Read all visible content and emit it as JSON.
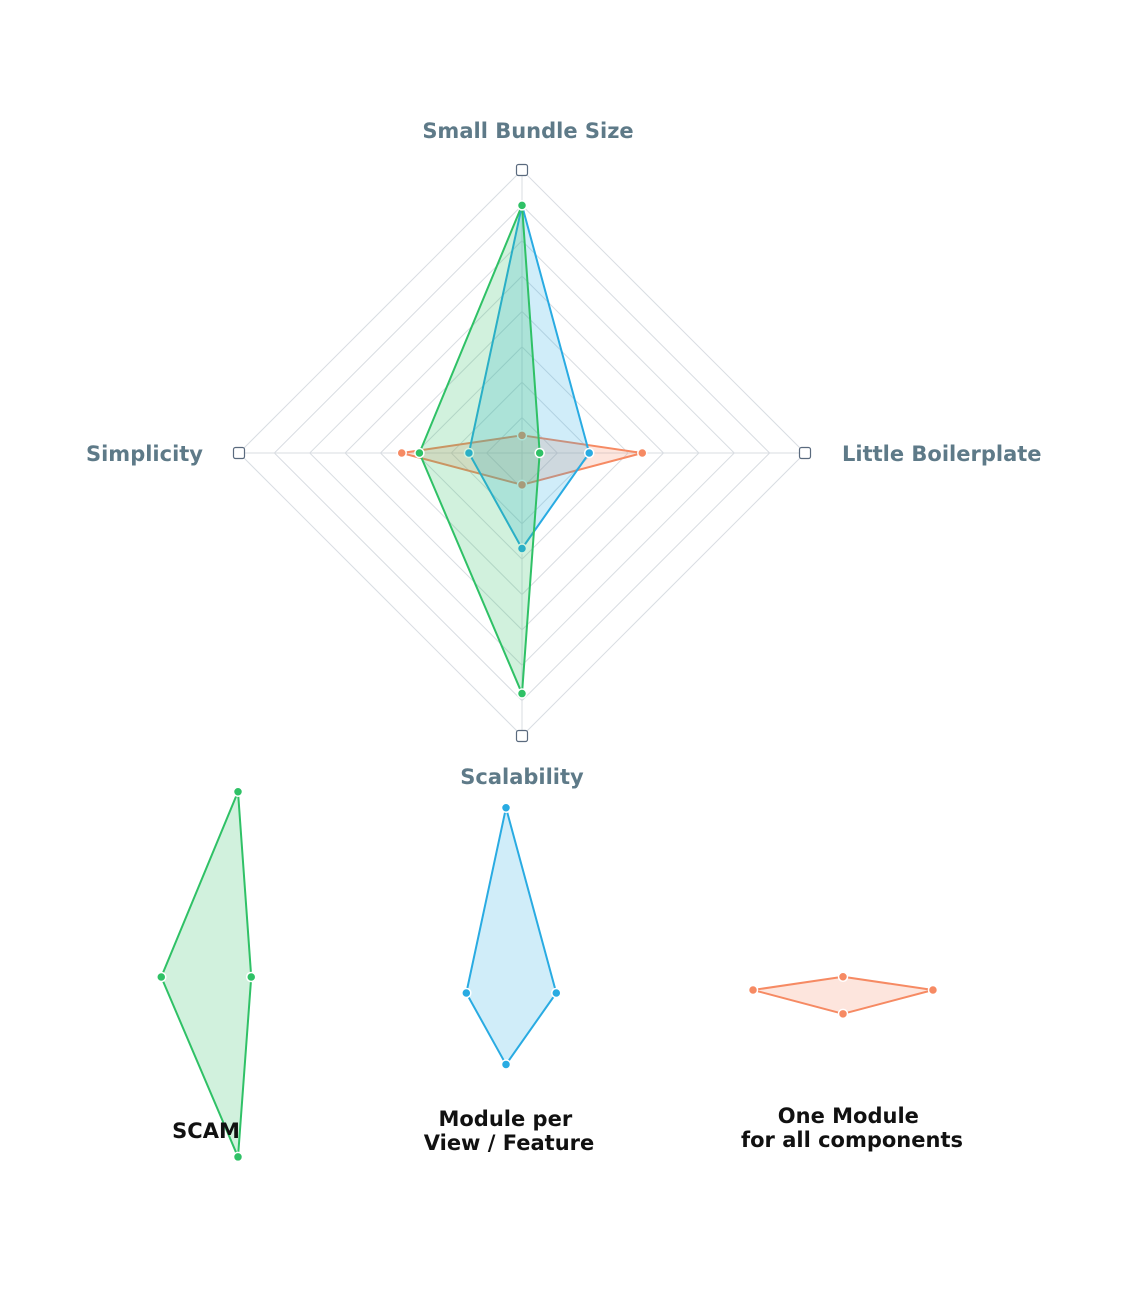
{
  "chart_data": {
    "type": "radar",
    "axes": [
      "Small Bundle Size",
      "Little Boilerplate",
      "Scalability",
      "Simplicity"
    ],
    "range": [
      0,
      8
    ],
    "grid_levels": 8,
    "series": [
      {
        "name": "SCAM",
        "label_lines": [
          "SCAM"
        ],
        "values": [
          7.0,
          0.5,
          6.8,
          2.9
        ],
        "color": "#2fc166",
        "fill": "#2fc166"
      },
      {
        "name": "Module per View / Feature",
        "label_lines": [
          "Module per",
          "View / Feature"
        ],
        "values": [
          7.0,
          1.9,
          2.7,
          1.5
        ],
        "color": "#29abe2",
        "fill": "#29abe2"
      },
      {
        "name": "One Module for all components",
        "label_lines": [
          "One Module",
          "for all components"
        ],
        "values": [
          0.5,
          3.4,
          0.9,
          3.4
        ],
        "color": "#f68a63",
        "fill": "#f68a63"
      }
    ],
    "draw_order": [
      2,
      1,
      0
    ],
    "legend_placement": "bottom"
  }
}
